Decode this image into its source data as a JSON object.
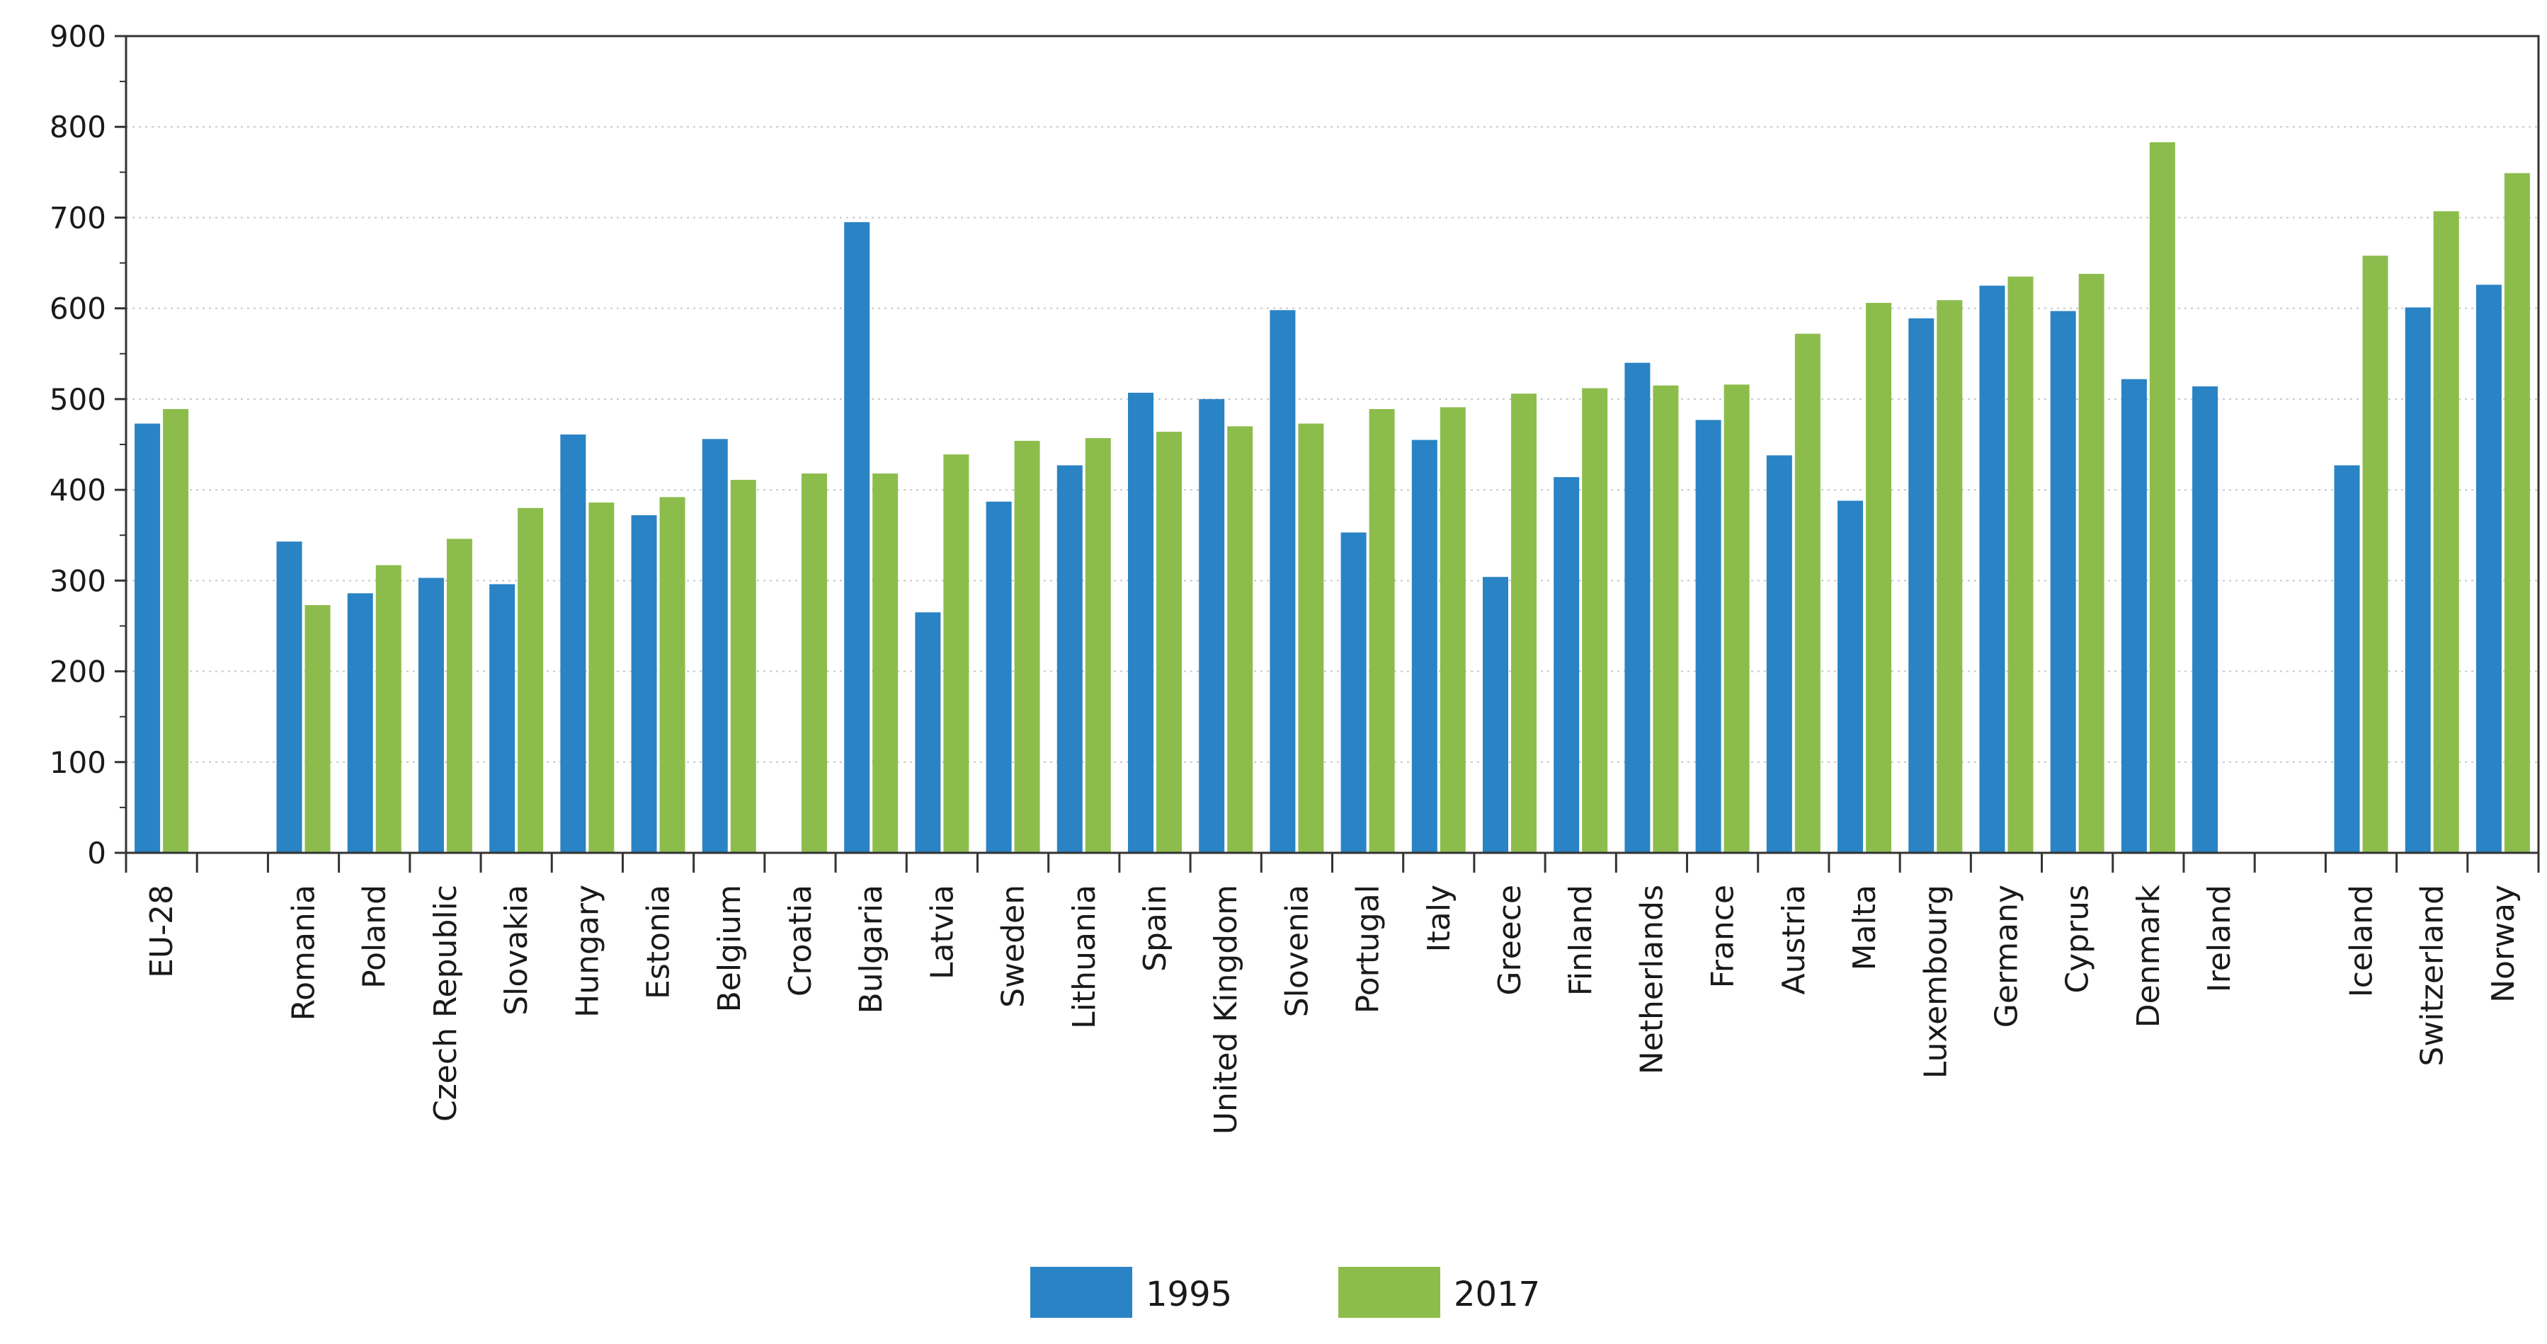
{
  "chart_data": {
    "type": "bar",
    "title": "",
    "xlabel": "",
    "ylabel": "",
    "ylim": [
      0,
      900
    ],
    "yticks": [
      0,
      100,
      200,
      300,
      400,
      500,
      600,
      700,
      800,
      900
    ],
    "grid": "horizontal dotted",
    "legend_position": "bottom-center",
    "categories": [
      "EU-28",
      "",
      "Romania",
      "Poland",
      "Czech Republic",
      "Slovakia",
      "Hungary",
      "Estonia",
      "Belgium",
      "Croatia",
      "Bulgaria",
      "Latvia",
      "Sweden",
      "Lithuania",
      "Spain",
      "United Kingdom",
      "Slovenia",
      "Portugal",
      "Italy",
      "Greece",
      "Finland",
      "Netherlands",
      "France",
      "Austria",
      "Malta",
      "Luxembourg",
      "Germany",
      "Cyprus",
      "Denmark",
      "Ireland",
      "",
      "Iceland",
      "Switzerland",
      "Norway"
    ],
    "series": [
      {
        "name": "1995",
        "color": "#2a83c4",
        "values": [
          473,
          null,
          343,
          286,
          303,
          296,
          461,
          372,
          456,
          null,
          695,
          265,
          387,
          427,
          507,
          500,
          598,
          353,
          455,
          304,
          414,
          540,
          477,
          438,
          388,
          589,
          625,
          597,
          522,
          514,
          null,
          427,
          601,
          626
        ]
      },
      {
        "name": "2017",
        "color": "#8cbd4c",
        "values": [
          489,
          null,
          273,
          317,
          346,
          380,
          386,
          392,
          411,
          418,
          418,
          439,
          454,
          457,
          464,
          470,
          473,
          489,
          491,
          506,
          512,
          515,
          516,
          572,
          606,
          609,
          635,
          638,
          783,
          null,
          null,
          658,
          707,
          749
        ]
      }
    ]
  }
}
